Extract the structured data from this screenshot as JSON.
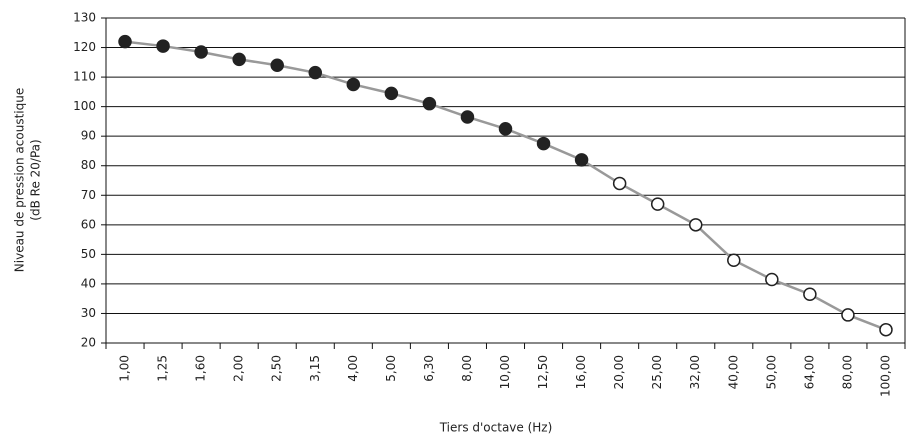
{
  "chart_data": {
    "type": "line",
    "xlabel": "Tiers d'octave (Hz)",
    "ylabel": [
      "Niveau de pression acoustique",
      "(dB Re 20/Pa)"
    ],
    "categories": [
      "1,00",
      "1,25",
      "1,60",
      "2,00",
      "2,50",
      "3,15",
      "4,00",
      "5,00",
      "6,30",
      "8,00",
      "10,00",
      "12,50",
      "16,00",
      "20,00",
      "25,00",
      "32,00",
      "40,00",
      "50,00",
      "64,00",
      "80,00",
      "100,00"
    ],
    "series": [
      {
        "color": "#999999",
        "values": [
          122,
          120.5,
          118.5,
          116,
          114,
          111.5,
          107.5,
          104.5,
          101,
          96.5,
          92.5,
          87.5,
          82,
          74,
          67,
          60,
          48,
          41.5,
          36.5,
          29.5,
          24.5
        ],
        "marker_fills": [
          "#222222",
          "#222222",
          "#222222",
          "#222222",
          "#222222",
          "#222222",
          "#222222",
          "#222222",
          "#222222",
          "#222222",
          "#222222",
          "#222222",
          "#222222",
          "#ffffff",
          "#ffffff",
          "#ffffff",
          "#ffffff",
          "#ffffff",
          "#ffffff",
          "#ffffff",
          "#ffffff"
        ]
      }
    ],
    "ylim": [
      20,
      130
    ],
    "yticks": [
      20,
      30,
      40,
      50,
      60,
      70,
      80,
      90,
      100,
      110,
      120,
      130
    ],
    "grid": true
  }
}
